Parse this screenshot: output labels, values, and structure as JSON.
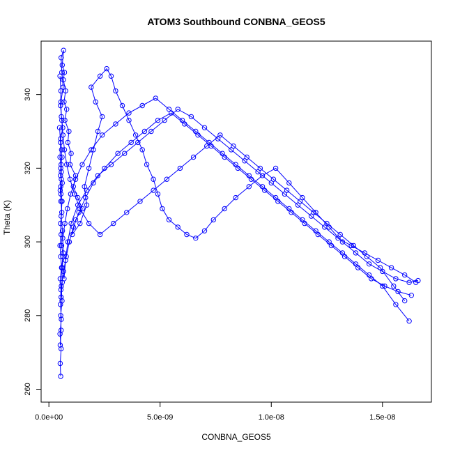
{
  "chart_data": {
    "type": "line",
    "title": "ATOM3 Southbound CONBNA_GEOS5",
    "xlabel": "CONBNA_GEOS5",
    "ylabel": "Theta (K)",
    "xlim": [
      -3.5e-10,
      1.72e-08
    ],
    "ylim": [
      256.5,
      354.5
    ],
    "x_ticks": [
      0,
      5e-09,
      1e-08,
      1.5e-08
    ],
    "x_tick_labels": [
      "0.0e+00",
      "5.0e-09",
      "1.0e-08",
      "1.5e-08"
    ],
    "y_ticks": [
      260,
      280,
      300,
      320,
      340
    ],
    "y_tick_labels": [
      "260",
      "280",
      "300",
      "320",
      "340"
    ],
    "grid": false,
    "legend": "none",
    "marker": "open-circle",
    "color": "#0000ff",
    "series": [
      {
        "x": [
          5.3e-10,
          5.1e-10,
          5.5e-10,
          5e-10,
          5.6e-10,
          5.2e-10,
          5.4e-10,
          5.1e-10,
          5.7e-10,
          5.3e-10,
          5e-10,
          5.5e-10,
          5.2e-10,
          5.8e-10,
          5.4e-10,
          5.1e-10,
          5.6e-10,
          5.3e-10,
          5.9e-10,
          5.5e-10,
          5.2e-10,
          6e-10,
          5.4e-10,
          5.7e-10,
          5.3e-10,
          6.2e-10,
          5.6e-10,
          5.4e-10,
          6.4e-10,
          5.8e-10,
          5.5e-10,
          6.6e-10,
          6e-10,
          7e-10,
          6.5e-10,
          7.5e-10,
          6.8e-10,
          8e-10,
          7.2e-10,
          9e-10,
          8.5e-10,
          1e-09,
          9.5e-10,
          1.2e-09,
          1.1e-09,
          1.3e-09,
          1.5e-09,
          1.2e-09,
          1.05e-09,
          1.4e-09,
          1.7e-09,
          1.6e-09,
          1.8e-09,
          2e-09,
          2.2e-09,
          2.4e-09,
          2.1e-09,
          1.9e-09,
          2.3e-09,
          2.6e-09,
          2.8e-09,
          3e-09,
          3.3e-09,
          3.6e-09,
          3.9e-09,
          4.2e-09,
          4.4e-09,
          4.7e-09,
          4.9e-09,
          5.1e-09,
          5.4e-09,
          5.8e-09,
          6.2e-09,
          6.6e-09,
          7e-09,
          7.4e-09,
          7.9e-09,
          8.4e-09,
          9e-09,
          9.6e-09,
          1.02e-08,
          1.08e-08,
          1.14e-08,
          1.2e-08,
          1.26e-08,
          1.32e-08,
          1.38e-08,
          1.44e-08,
          1.5e-08,
          1.56e-08,
          1.62e-08,
          1.66e-08
        ],
        "y": [
          263.5,
          267,
          271,
          275,
          279,
          283,
          287,
          290,
          293,
          296,
          299,
          302,
          305,
          308,
          311,
          314,
          317,
          320,
          323,
          321,
          318,
          316,
          313,
          325,
          328,
          331,
          334,
          338,
          342,
          346,
          350,
          352,
          348,
          346,
          344,
          341,
          338,
          336,
          333,
          330,
          327,
          324,
          321,
          318,
          315,
          312,
          309,
          306,
          302,
          305,
          310,
          315,
          320,
          325,
          330,
          334,
          338,
          342,
          345,
          347,
          345,
          341,
          337,
          333,
          329,
          325,
          321,
          317,
          313,
          309,
          306,
          304,
          302,
          301,
          303,
          306,
          309,
          312,
          315,
          318,
          320,
          316,
          312,
          308,
          304,
          300,
          297,
          294,
          292,
          290,
          289,
          289.5
        ]
      },
      {
        "x": [
          4.8e-10,
          5.2e-10,
          5e-10,
          5.6e-10,
          5.3e-10,
          5.9e-10,
          5.5e-10,
          6.1e-10,
          5.7e-10,
          6.4e-10,
          6e-10,
          6.8e-10,
          7.5e-10,
          8.5e-10,
          1e-09,
          1.3e-09,
          1.7e-09,
          2.2e-09,
          2.8e-09,
          3.4e-09,
          4e-09,
          4.6e-09,
          5.2e-09,
          5.8e-09,
          6.4e-09,
          7e-09,
          7.6e-09,
          8.2e-09,
          8.8e-09,
          9.4e-09,
          1e-08,
          1.06e-08,
          1.12e-08,
          1.18e-08,
          1.24e-08,
          1.3e-08,
          1.36e-08,
          1.42e-08,
          1.48e-08,
          1.54e-08,
          1.6e-08,
          1.65e-08
        ],
        "y": [
          331,
          327,
          323,
          319,
          315,
          311,
          307,
          303,
          299,
          296,
          293,
          290,
          295,
          300,
          305,
          310,
          314,
          318,
          321,
          324,
          327,
          330,
          333,
          336,
          334,
          331,
          328,
          325,
          322,
          319,
          316,
          313,
          310,
          307,
          304,
          301,
          299,
          297,
          295,
          293,
          291,
          289
        ]
      },
      {
        "x": [
          5e-10,
          5.4e-10,
          5.2e-10,
          5.8e-10,
          6.3e-10,
          7e-10,
          8e-10,
          9.5e-10,
          1.15e-09,
          1.4e-09,
          1.8e-09,
          2.3e-09,
          2.9e-09,
          3.5e-09,
          4.1e-09,
          4.7e-09,
          5.3e-09,
          5.9e-09,
          6.5e-09,
          7.1e-09,
          7.7e-09,
          8.3e-09,
          8.9e-09,
          9.5e-09,
          1.01e-08,
          1.07e-08,
          1.13e-08,
          1.19e-08,
          1.25e-08,
          1.31e-08,
          1.37e-08,
          1.43e-08,
          1.49e-08,
          1.55e-08,
          1.6e-08
        ],
        "y": [
          345,
          341,
          337,
          333,
          329,
          325,
          321,
          317,
          313,
          309,
          305,
          302,
          305,
          308,
          311,
          314,
          317,
          320,
          323,
          326,
          329,
          326,
          323,
          320,
          317,
          314,
          311,
          308,
          305,
          302,
          299,
          296,
          293,
          288,
          284
        ]
      },
      {
        "x": [
          5.5e-10,
          6e-10,
          5.7e-10,
          6.5e-10,
          6.2e-10,
          7.2e-10,
          8.3e-10,
          9.8e-10,
          1.2e-09,
          1.5e-09,
          1.9e-09,
          2.4e-09,
          3e-09,
          3.6e-09,
          4.2e-09,
          4.8e-09,
          5.4e-09,
          6e-09,
          6.6e-09,
          7.2e-09,
          7.8e-09,
          8.4e-09,
          9e-09,
          9.6e-09,
          1.02e-08,
          1.08e-08,
          1.14e-08,
          1.2e-08,
          1.26e-08,
          1.32e-08,
          1.38e-08,
          1.44e-08,
          1.5e-08,
          1.56e-08,
          1.62e-08
        ],
        "y": [
          285,
          289,
          293,
          297,
          301,
          305,
          309,
          313,
          317,
          321,
          325,
          329,
          332,
          335,
          337,
          339,
          336,
          333,
          330,
          327,
          324,
          321,
          318,
          315,
          312,
          309,
          306,
          303,
          300,
          297,
          294,
          291,
          288,
          283,
          278.5
        ]
      },
      {
        "x": [
          5.1e-10,
          5.5e-10,
          5.3e-10,
          5.9e-10,
          5.6e-10,
          6.6e-10,
          7.8e-10,
          9.2e-10,
          1.1e-09,
          1.35e-09,
          1.65e-09,
          2e-09,
          2.5e-09,
          3.1e-09,
          3.7e-09,
          4.3e-09,
          4.9e-09,
          5.5e-09,
          6.1e-09,
          6.7e-09,
          7.3e-09,
          7.9e-09,
          8.5e-09,
          9.1e-09,
          9.7e-09,
          1.03e-08,
          1.09e-08,
          1.15e-08,
          1.21e-08,
          1.27e-08,
          1.33e-08,
          1.39e-08,
          1.45e-08,
          1.51e-08,
          1.57e-08,
          1.63e-08
        ],
        "y": [
          272,
          276,
          280,
          284,
          288,
          292,
          296,
          300,
          304,
          308,
          312,
          316,
          320,
          324,
          327,
          330,
          333,
          335,
          332,
          329,
          326,
          323,
          320,
          317,
          314,
          311,
          308,
          305,
          302,
          299,
          296,
          293,
          290,
          288,
          286.5,
          285.5
        ]
      }
    ]
  }
}
